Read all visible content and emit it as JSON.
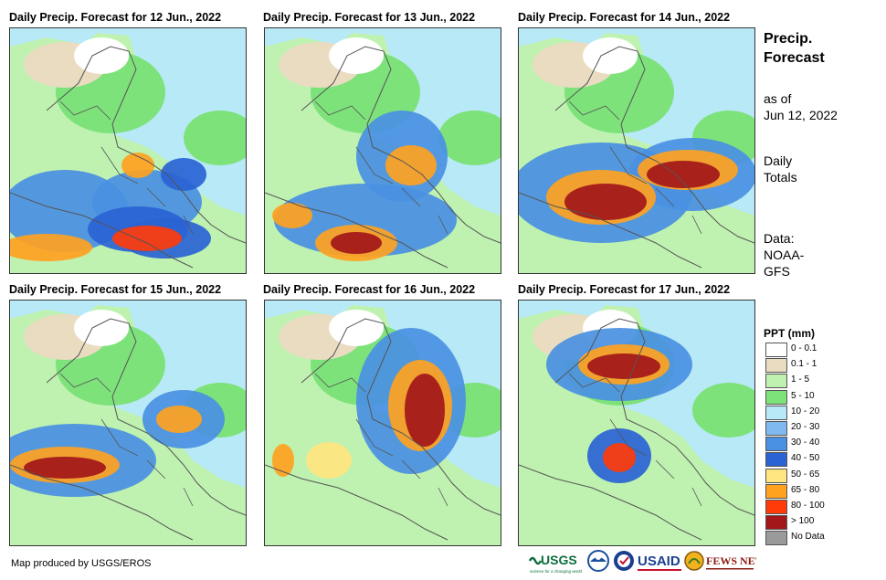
{
  "panels": [
    {
      "title": "Daily Precip. Forecast for 12 Jun., 2022"
    },
    {
      "title": "Daily Precip. Forecast for 13 Jun., 2022"
    },
    {
      "title": "Daily Precip. Forecast for 14 Jun., 2022"
    },
    {
      "title": "Daily Precip. Forecast for 15 Jun., 2022"
    },
    {
      "title": "Daily Precip. Forecast for 16 Jun., 2022"
    },
    {
      "title": "Daily Precip. Forecast for 17 Jun., 2022"
    }
  ],
  "side": {
    "title_line1": "Precip.",
    "title_line2": "Forecast",
    "asof_line1": "as of",
    "asof_line2": "Jun 12, 2022",
    "totals_line1": "Daily",
    "totals_line2": "Totals",
    "data_line1": "Data:",
    "data_line2": "NOAA-",
    "data_line3": "GFS"
  },
  "legend": {
    "title": "PPT (mm)",
    "items": [
      {
        "label": "0 - 0.1",
        "color": "#ffffff"
      },
      {
        "label": "0.1 - 1",
        "color": "#e9dcc1"
      },
      {
        "label": "1 - 5",
        "color": "#bff2b0"
      },
      {
        "label": "5 - 10",
        "color": "#7ee27b"
      },
      {
        "label": "10 - 20",
        "color": "#b8e9f7"
      },
      {
        "label": "20 - 30",
        "color": "#7fb9ef"
      },
      {
        "label": "30 - 40",
        "color": "#4a90e2"
      },
      {
        "label": "40 - 50",
        "color": "#2a63d4"
      },
      {
        "label": "50 - 65",
        "color": "#ffe680"
      },
      {
        "label": "65 - 80",
        "color": "#ffa21f"
      },
      {
        "label": "80 - 100",
        "color": "#ff3b0a"
      },
      {
        "label": "> 100",
        "color": "#a3161a"
      },
      {
        "label": "No Data",
        "color": "#9a9a9a"
      }
    ]
  },
  "credit": "Map produced by USGS/EROS",
  "logos": {
    "usgs": "USGS",
    "usgs_tagline": "science for a changing world",
    "usaid": "USAID",
    "fewsnet": "FEWS NET"
  }
}
